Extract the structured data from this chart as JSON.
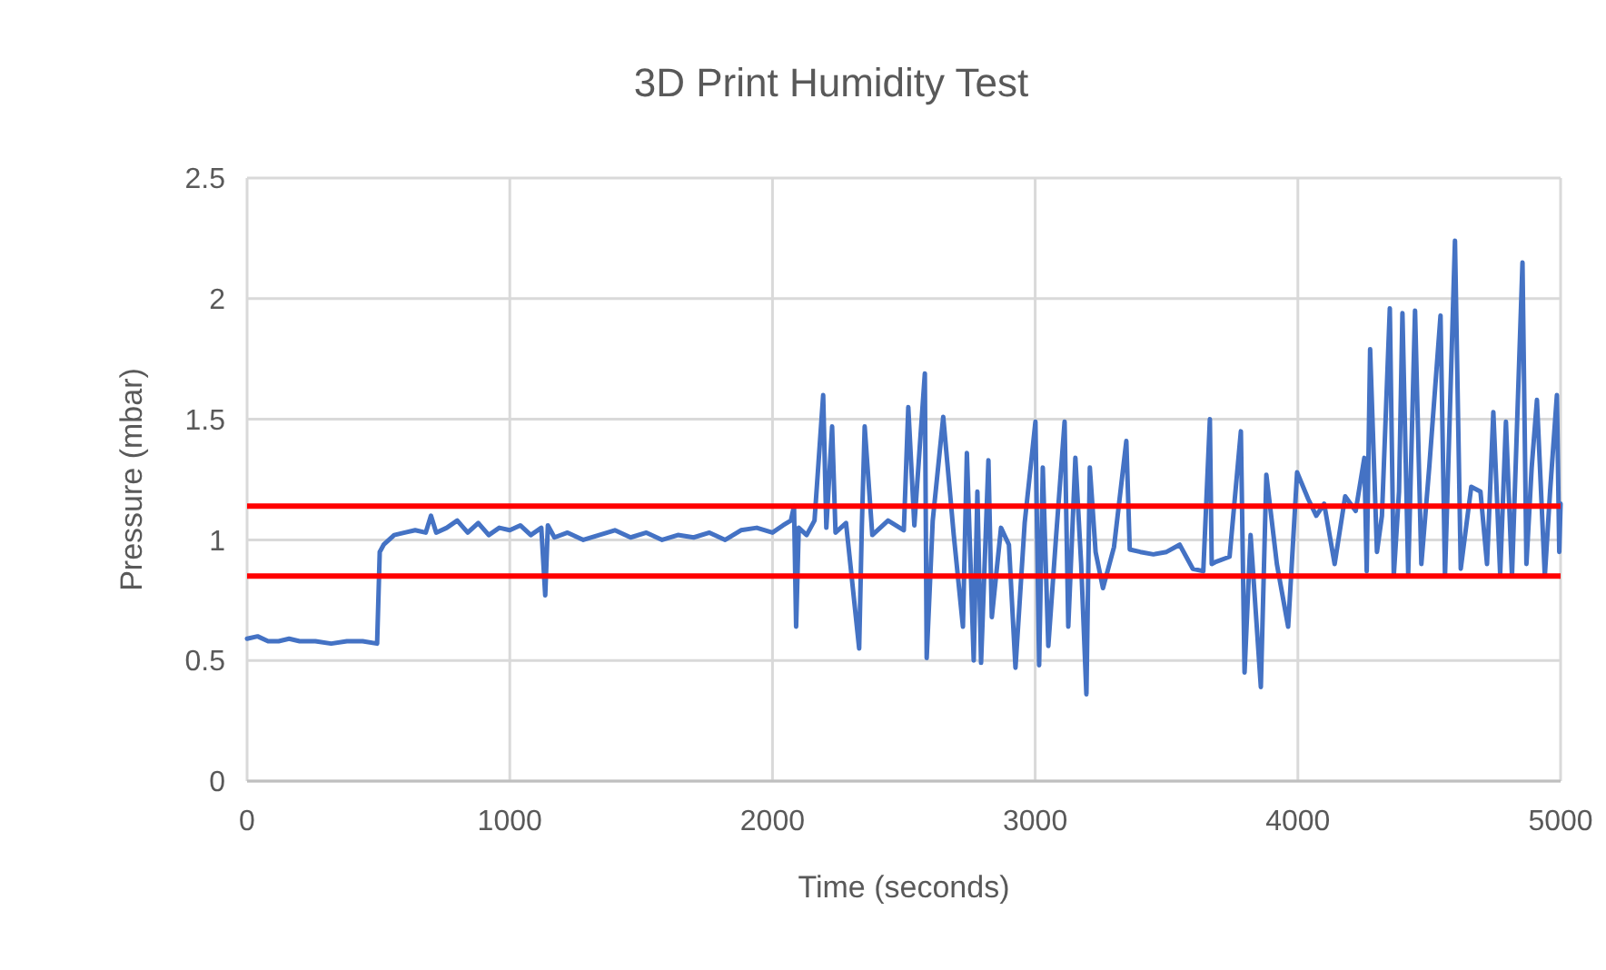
{
  "chart_data": {
    "type": "line",
    "title": "3D Print Humidity Test",
    "xlabel": "Time (seconds)",
    "ylabel": "Pressure (mbar)",
    "xlim": [
      0,
      5000
    ],
    "xticks": [
      0,
      1000,
      2000,
      3000,
      4000,
      5000
    ],
    "ylim": [
      0,
      2.5
    ],
    "yticks": [
      0,
      0.5,
      1,
      1.5,
      2,
      2.5
    ],
    "grid": true,
    "marker": "none",
    "line_style": "solid",
    "series": [
      {
        "color": "#4472c4",
        "x": [
          0,
          40,
          80,
          120,
          160,
          200,
          260,
          320,
          380,
          440,
          495,
          505,
          520,
          560,
          600,
          640,
          680,
          700,
          720,
          760,
          800,
          840,
          880,
          920,
          960,
          1000,
          1040,
          1080,
          1120,
          1135,
          1145,
          1170,
          1220,
          1280,
          1340,
          1400,
          1460,
          1520,
          1580,
          1640,
          1700,
          1760,
          1820,
          1880,
          1940,
          2000,
          2040,
          2070,
          2082,
          2090,
          2100,
          2130,
          2160,
          2193,
          2205,
          2227,
          2240,
          2280,
          2330,
          2340,
          2351,
          2380,
          2440,
          2500,
          2517,
          2540,
          2580,
          2587,
          2610,
          2650,
          2690,
          2725,
          2740,
          2766,
          2780,
          2794,
          2822,
          2835,
          2870,
          2900,
          2925,
          2960,
          3001,
          3015,
          3029,
          3050,
          3080,
          3112,
          3126,
          3153,
          3175,
          3195,
          3208,
          3230,
          3258,
          3300,
          3347,
          3360,
          3400,
          3450,
          3500,
          3550,
          3600,
          3640,
          3665,
          3672,
          3690,
          3740,
          3783,
          3797,
          3820,
          3859,
          3880,
          3920,
          3963,
          3997,
          4039,
          4070,
          4100,
          4140,
          4180,
          4220,
          4253,
          4262,
          4275,
          4301,
          4320,
          4350,
          4365,
          4385,
          4398,
          4420,
          4446,
          4470,
          4500,
          4543,
          4560,
          4598,
          4620,
          4660,
          4695,
          4720,
          4744,
          4770,
          4792,
          4815,
          4855,
          4870,
          4890,
          4910,
          4940,
          4960,
          4986,
          4995,
          5000
        ],
        "values": [
          0.59,
          0.6,
          0.58,
          0.58,
          0.59,
          0.58,
          0.58,
          0.57,
          0.58,
          0.58,
          0.57,
          0.95,
          0.98,
          1.02,
          1.03,
          1.04,
          1.03,
          1.1,
          1.03,
          1.05,
          1.08,
          1.03,
          1.07,
          1.02,
          1.05,
          1.04,
          1.06,
          1.02,
          1.05,
          0.77,
          1.06,
          1.01,
          1.03,
          1,
          1.02,
          1.04,
          1.01,
          1.03,
          1,
          1.02,
          1.01,
          1.03,
          1,
          1.04,
          1.05,
          1.03,
          1.06,
          1.08,
          1.14,
          0.64,
          1.05,
          1.02,
          1.08,
          1.6,
          1.05,
          1.47,
          1.03,
          1.07,
          0.55,
          1.05,
          1.47,
          1.02,
          1.08,
          1.04,
          1.55,
          1.06,
          1.69,
          0.51,
          1.08,
          1.51,
          1.02,
          0.64,
          1.36,
          0.5,
          1.2,
          0.49,
          1.33,
          0.68,
          1.05,
          0.98,
          0.47,
          1.07,
          1.49,
          0.48,
          1.3,
          0.56,
          1.02,
          1.49,
          0.64,
          1.34,
          0.9,
          0.36,
          1.3,
          0.95,
          0.8,
          0.97,
          1.41,
          0.96,
          0.95,
          0.94,
          0.95,
          0.98,
          0.88,
          0.87,
          1.5,
          0.9,
          0.91,
          0.93,
          1.45,
          0.45,
          1.02,
          0.39,
          1.27,
          0.9,
          0.64,
          1.28,
          1.17,
          1.1,
          1.15,
          0.9,
          1.18,
          1.12,
          1.34,
          0.87,
          1.79,
          0.95,
          1.1,
          1.96,
          0.85,
          1.2,
          1.94,
          0.86,
          1.95,
          0.9,
          1.3,
          1.93,
          0.85,
          2.24,
          0.88,
          1.22,
          1.2,
          0.9,
          1.53,
          0.86,
          1.49,
          0.85,
          2.15,
          0.9,
          1.3,
          1.58,
          0.85,
          1.2,
          1.6,
          0.95,
          1.15
        ]
      }
    ],
    "ref_lines": [
      {
        "axis": "y",
        "value": 1.14,
        "color": "#ff0000"
      },
      {
        "axis": "y",
        "value": 0.85,
        "color": "#ff0000"
      }
    ]
  }
}
